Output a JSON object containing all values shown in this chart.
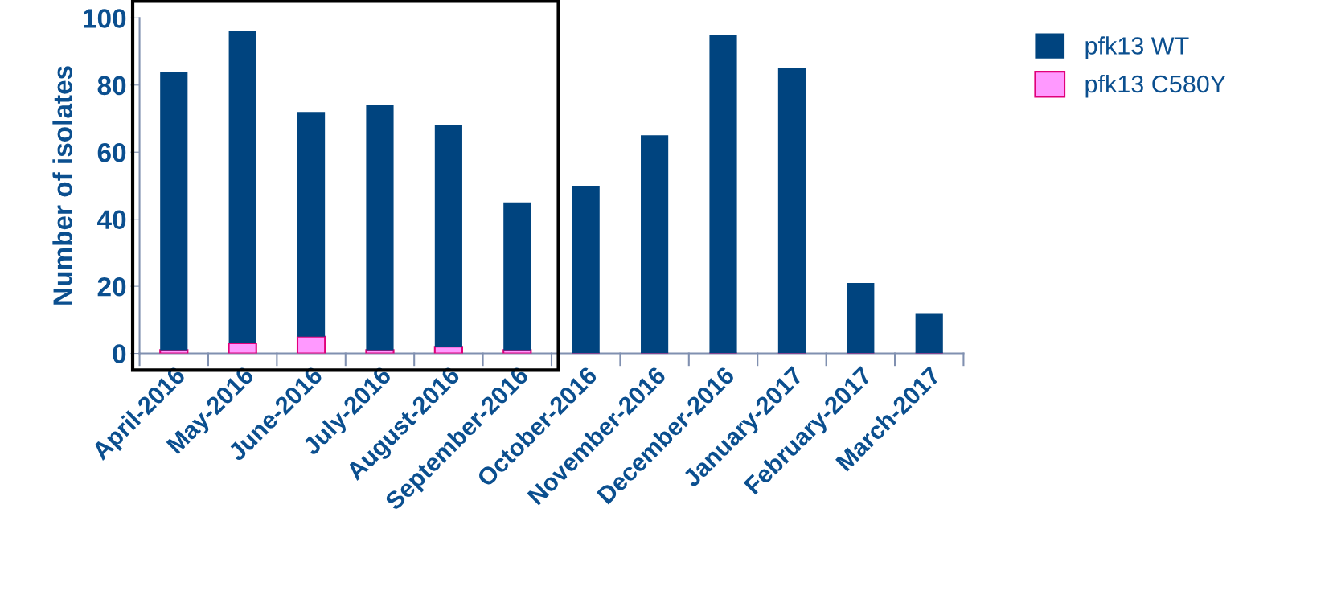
{
  "chart_data": {
    "type": "bar",
    "stacked": true,
    "ylabel": "Number of isolates",
    "categories": [
      "April-2016",
      "May-2016",
      "June-2016",
      "July-2016",
      "August-2016",
      "September-2016",
      "October-2016",
      "November-2016",
      "December-2016",
      "January-2017",
      "February-2017",
      "March-2017"
    ],
    "series": [
      {
        "name": "pfk13 C580Y",
        "color": "#ff99ff",
        "values": [
          1,
          3,
          5,
          1,
          2,
          1,
          0,
          0,
          0,
          0,
          0,
          0
        ]
      },
      {
        "name": "pfk13 WT",
        "color": "#00447f",
        "values": [
          83,
          93,
          67,
          73,
          66,
          44,
          50,
          65,
          95,
          85,
          21,
          12
        ]
      }
    ],
    "ylim": [
      0,
      100
    ],
    "yticks": [
      0,
      20,
      40,
      60,
      80,
      100
    ],
    "grid": false,
    "legend": "top right"
  }
}
